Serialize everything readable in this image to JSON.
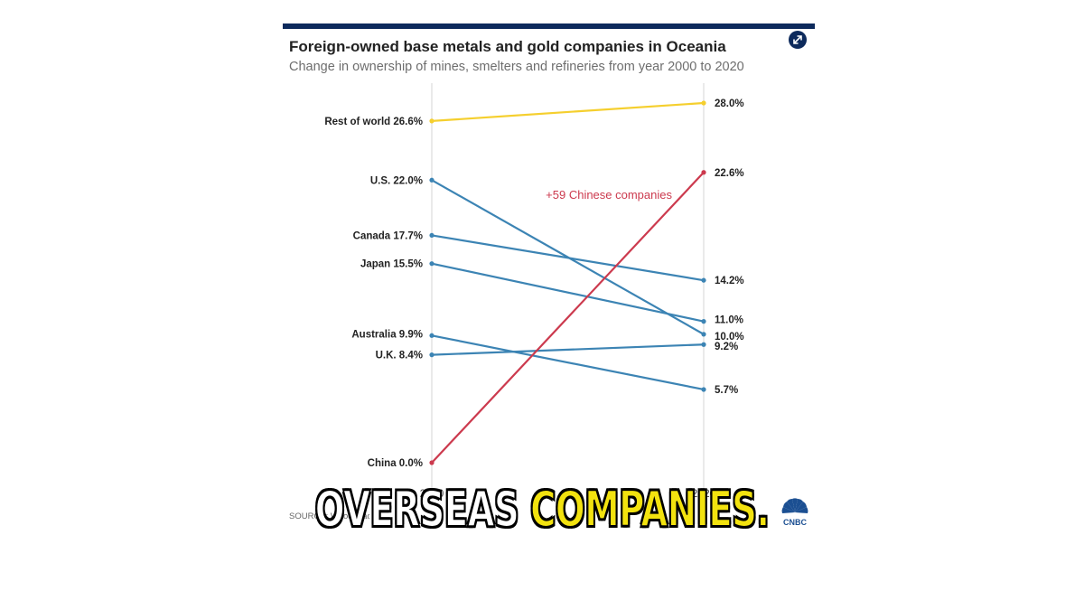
{
  "title": "Foreign-owned base metals and gold companies in Oceania",
  "subtitle": "Change in ownership of mines, smelters and refineries from year 2000 to 2020",
  "source": "SOURCE: Wood Mack",
  "logo_text": "CNBC",
  "caption": {
    "word1": "OVERSEAS",
    "word2": "COMPANIES."
  },
  "icons": {
    "expand": "expand-arrows-icon",
    "logo": "cnbc-peacock-logo"
  },
  "colors": {
    "rest_of_world": "#f5cf2e",
    "china": "#cc3a4e",
    "others": "#3c84b4",
    "caption_highlight": "#f2e20f",
    "title_bar": "#0d2a5c"
  },
  "chart_data": {
    "type": "slope",
    "x": [
      "2000",
      "2020"
    ],
    "annotation": "+59 Chinese companies",
    "ylim": [
      0,
      28
    ],
    "series": [
      {
        "name": "Rest of world",
        "start": 26.6,
        "end": 28.0,
        "start_label": "Rest of world 26.6%",
        "end_label": "28.0%",
        "color": "#f5cf2e"
      },
      {
        "name": "U.S.",
        "start": 22.0,
        "end": 10.0,
        "start_label": "U.S. 22.0%",
        "end_label": "10.0%",
        "color": "#3c84b4"
      },
      {
        "name": "Canada",
        "start": 17.7,
        "end": 14.2,
        "start_label": "Canada 17.7%",
        "end_label": "14.2%",
        "color": "#3c84b4"
      },
      {
        "name": "Japan",
        "start": 15.5,
        "end": 11.0,
        "start_label": "Japan 15.5%",
        "end_label": "11.0%",
        "color": "#3c84b4"
      },
      {
        "name": "Australia",
        "start": 9.9,
        "end": 5.7,
        "start_label": "Australia 9.9%",
        "end_label": "5.7%",
        "color": "#3c84b4"
      },
      {
        "name": "U.K.",
        "start": 8.4,
        "end": 9.2,
        "start_label": "U.K. 8.4%",
        "end_label": "9.2%",
        "color": "#3c84b4"
      },
      {
        "name": "China",
        "start": 0.0,
        "end": 22.6,
        "start_label": "China 0.0%",
        "end_label": "22.6%",
        "color": "#cc3a4e"
      }
    ]
  }
}
